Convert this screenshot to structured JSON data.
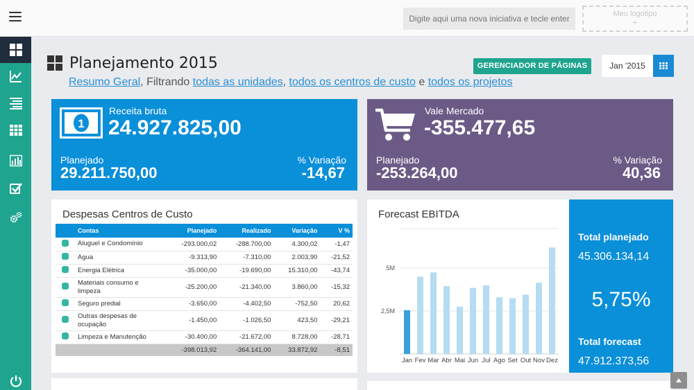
{
  "topbar": {
    "initiative_placeholder": "Digite aqui uma nova iniciativa e tecle enter",
    "logo_label": "Meu logotipo",
    "logo_plus": "+"
  },
  "sidebar": {
    "items": [
      {
        "name": "dashboard-icon",
        "active": true
      },
      {
        "name": "line-chart-icon",
        "active": false
      },
      {
        "name": "list-icon",
        "active": false
      },
      {
        "name": "table-icon",
        "active": false
      },
      {
        "name": "bar-chart-icon",
        "active": false
      },
      {
        "name": "checklist-icon",
        "active": false
      },
      {
        "name": "settings-icon",
        "active": false
      }
    ],
    "power": "power-icon"
  },
  "header": {
    "title": "Planejamento 2015",
    "summary_link": "Resumo Geral",
    "filter_prefix": "Filtrando",
    "units_link": "todas as unidades",
    "sep": ",",
    "cost_centers_link": "todos os centros de custo",
    "and": "e",
    "projects_link": "todos os projetos",
    "pages_button": "GERENCIADOR DE PÁGINAS",
    "date": "Jan '2015"
  },
  "kpis": {
    "revenue": {
      "label": "Receita bruta",
      "value": "24.927.825,00",
      "plan_label": "Planejado",
      "plan_value": "29.211.750,00",
      "var_label": "% Variação",
      "var_value": "-14,67",
      "color": "#0a8fd9"
    },
    "voucher": {
      "label": "Vale Mercado",
      "value": "-355.477,65",
      "plan_label": "Planejado",
      "plan_value": "-253.264,00",
      "var_label": "% Variação",
      "var_value": "40,36",
      "color": "#6b5a86"
    }
  },
  "expenses": {
    "title": "Despesas Centros de Custo",
    "columns": [
      "Contas",
      "Planejado",
      "Realizado",
      "Variação",
      "V %"
    ],
    "rows": [
      {
        "conta": "Aluguel e Condomínio",
        "planejado": "-293.000,02",
        "realizado": "-288.700,00",
        "variacao": "4.300,02",
        "vp": "-1,47"
      },
      {
        "conta": "Agua",
        "planejado": "-9.313,90",
        "realizado": "-7.310,00",
        "variacao": "2.003,90",
        "vp": "-21,52"
      },
      {
        "conta": "Energia Elétrica",
        "planejado": "-35.000,00",
        "realizado": "-19.690,00",
        "variacao": "15.310,00",
        "vp": "-43,74"
      },
      {
        "conta": "Materiais consumo e limpeza",
        "planejado": "-25.200,00",
        "realizado": "-21.340,00",
        "variacao": "3.860,00",
        "vp": "-15,32"
      },
      {
        "conta": "Seguro predial",
        "planejado": "-3.650,00",
        "realizado": "-4.402,50",
        "variacao": "-752,50",
        "vp": "20,62"
      },
      {
        "conta": "Outras despesas de ocupação",
        "planejado": "-1.450,00",
        "realizado": "-1.026,50",
        "variacao": "423,50",
        "vp": "-29,21"
      },
      {
        "conta": "Limpeza e Manutenção",
        "planejado": "-30.400,00",
        "realizado": "-21.672,00",
        "variacao": "8.728,00",
        "vp": "-28,71"
      }
    ],
    "total": {
      "conta": "",
      "planejado": "-398.013,92",
      "realizado": "-364.141,00",
      "variacao": "33.872,92",
      "vp": "-8,51"
    }
  },
  "forecast": {
    "title": "Forecast EBITDA",
    "total_planned_label": "Total planejado",
    "total_planned_value": "45.306.134,14",
    "pct": "5,75%",
    "total_forecast_label": "Total forecast",
    "total_forecast_value": "47.912.373,56"
  },
  "chart_data": {
    "type": "bar",
    "title": "Forecast EBITDA",
    "categories": [
      "Jan",
      "Fev",
      "Mar",
      "Abr",
      "Mai",
      "Jun",
      "Jul",
      "Ago",
      "Set",
      "Out",
      "Nov",
      "Dez"
    ],
    "values": [
      2.55,
      4.5,
      4.75,
      3.95,
      2.75,
      3.85,
      4.0,
      3.3,
      3.25,
      3.45,
      4.15,
      6.2
    ],
    "highlight_index": 0,
    "ylim": [
      0,
      7.3
    ],
    "yticks": [
      2.5,
      5
    ],
    "ytick_labels": [
      "2,5M",
      "5M"
    ],
    "grid": true,
    "colors": {
      "highlight": "#3aa0dc",
      "normal": "#b5dcf2"
    }
  }
}
